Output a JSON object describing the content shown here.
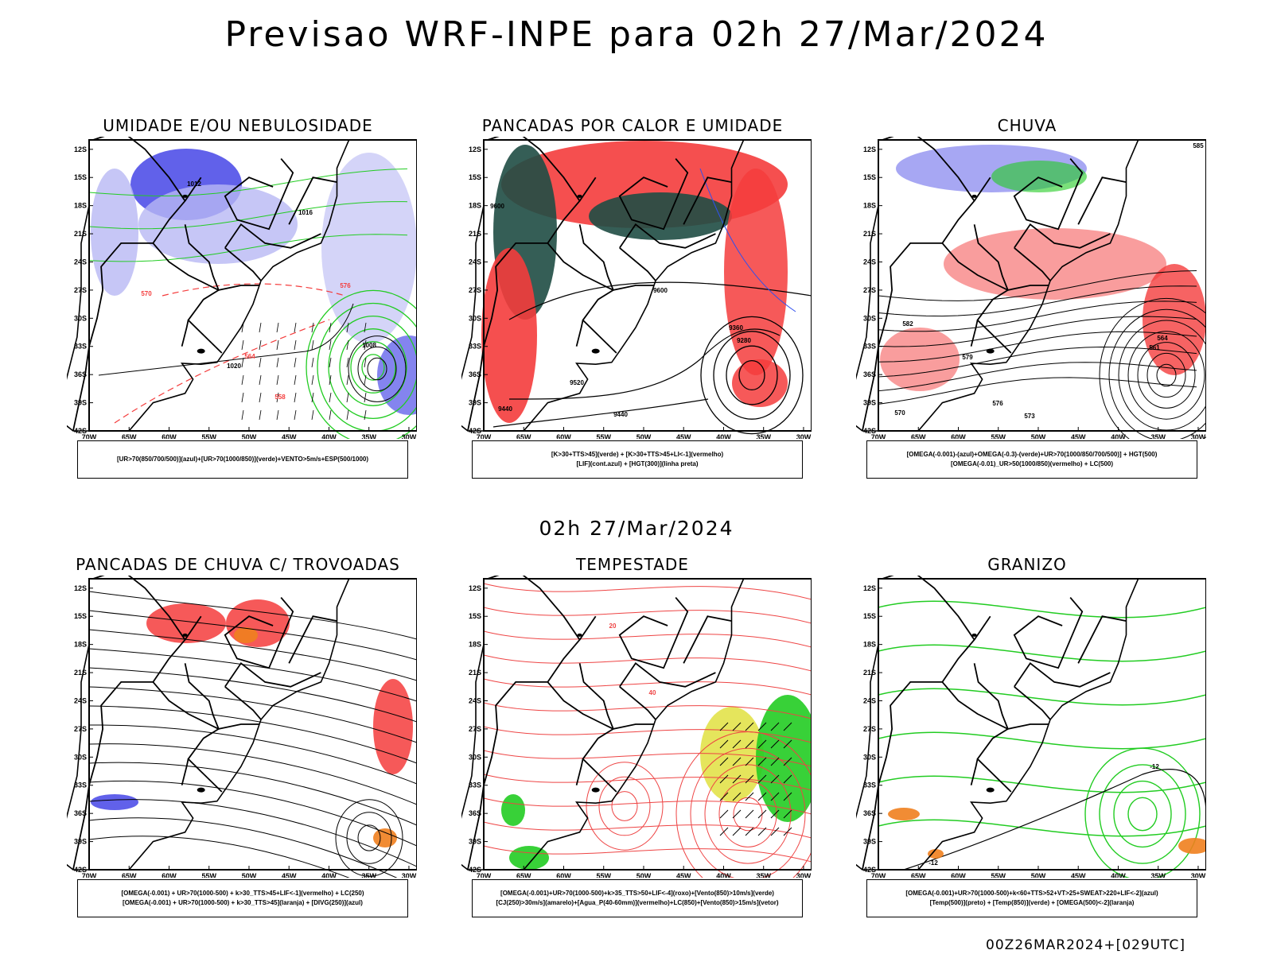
{
  "header": {
    "title": "Previsao WRF-INPE  para 02h 27/Mar/2024",
    "mid_title": "02h 27/Mar/2024",
    "footer": "00Z26MAR2024+[029UTC]"
  },
  "axes": {
    "lat_labels": [
      "12S",
      "15S",
      "18S",
      "21S",
      "24S",
      "27S",
      "30S",
      "33S",
      "36S",
      "39S",
      "42S"
    ],
    "lon_labels": [
      "70W",
      "65W",
      "60W",
      "55W",
      "50W",
      "45W",
      "40W",
      "35W",
      "30W"
    ]
  },
  "colors": {
    "blue": "#5050e8",
    "lightblue": "#b8b8f4",
    "green": "#22cc22",
    "red": "#f43c3c",
    "darkteal": "#1f4d44",
    "orange": "#f07f1e",
    "yellow": "#e0e040",
    "contour": "#000000"
  },
  "panels": [
    {
      "title": "UMIDADE E/OU NEBULOSIDADE",
      "legend": [
        "[UR>70(850/700/500)](azul)+[UR>70(1000/850)](verde)+VENTO>5m/s+ESP(500/1000)"
      ],
      "contour_labels": [
        "1012",
        "1016",
        "1020",
        "1008",
        "570",
        "576",
        "564",
        "558"
      ]
    },
    {
      "title": "PANCADAS POR CALOR E UMIDADE",
      "legend": [
        "[K>30+TTS>45](verde) + [K>30+TTS>45+LI<-1](vermelho)",
        "[LIF](cont.azul) + [HGT(300)](linha preta)"
      ],
      "contour_labels": [
        "9600",
        "9520",
        "9440",
        "9360",
        "9280"
      ]
    },
    {
      "title": "CHUVA",
      "legend": [
        "[OMEGA(-0.001)-(azul)+OMEGA(-0.3)-(verde)+UR>70(1000/850/700/500)] + HGT(500)",
        "[OMEGA(-0.01)_UR>50(1000/850)(vermelho) + LC(500)"
      ],
      "contour_labels": [
        "585",
        "582",
        "579",
        "576",
        "573",
        "570",
        "567",
        "564",
        "561"
      ]
    },
    {
      "title": "PANCADAS DE CHUVA C/ TROVOADAS",
      "legend": [
        "[OMEGA(-0.001) + UR>70(1000-500) + k>30_TTS>45+LIF<-1](vermelho) + LC(250)",
        "[OMEGA(-0.001) + UR>70(1000-500) + k>30_TTS>45](laranja) + [DIVG(250)](azul)"
      ],
      "contour_labels": []
    },
    {
      "title": "TEMPESTADE",
      "legend": [
        "[OMEGA(-0.001)+UR>70(1000-500)+k>35_TTS>50+LIF<-4](roxo)+[Vento(850)>10m/s](verde)",
        "[CJ(250)>30m/s](amarelo)+[Agua_P(40-60mm)](vermelho)+LC(850)+[Vento(850)>15m/s](vetor)"
      ],
      "contour_labels": [
        "20",
        "40"
      ]
    },
    {
      "title": "GRANIZO",
      "legend": [
        "[OMEGA(-0.001)+UR>70(1000-500)+k<60+TTS>52+VT>25+SWEAT>220+LIF<-2](azul)",
        "[Temp(500)](preto) + [Temp(850)](verde) + [OMEGA(500)<-2](laranja)"
      ],
      "contour_labels": [
        "-12",
        "-12"
      ]
    }
  ]
}
